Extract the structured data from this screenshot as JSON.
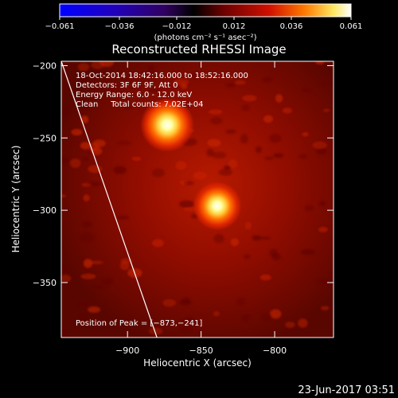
{
  "chart_data": {
    "type": "heatmap",
    "title": "Reconstructed RHESSI Image",
    "colorbar": {
      "ticks": [
        -0.061,
        -0.036,
        -0.012,
        0.012,
        0.036,
        0.061
      ],
      "tick_labels": [
        "−0.061",
        "−0.036",
        "−0.012",
        "0.012",
        "0.036",
        "0.061"
      ],
      "unit_label": "(photons cm⁻² s⁻¹ asec⁻²)",
      "range": [
        -0.061,
        0.061
      ],
      "colors": [
        "#0000ff",
        "#3a00a0",
        "#000000",
        "#6a0000",
        "#d01000",
        "#ff7a00",
        "#ffe860",
        "#ffffff"
      ]
    },
    "xlabel": "Heliocentric X (arcsec)",
    "ylabel": "Heliocentric Y (arcsec)",
    "xlim": [
      -945,
      -760
    ],
    "ylim": [
      -388,
      -197
    ],
    "x_ticks": [
      -900,
      -850,
      -800
    ],
    "x_tick_labels": [
      "−900",
      "−850",
      "−800"
    ],
    "y_ticks": [
      -200,
      -250,
      -300,
      -350
    ],
    "y_tick_labels": [
      "−200",
      "−250",
      "−300",
      "−350"
    ],
    "sources": [
      {
        "x": -873,
        "y": -241,
        "peak": 0.061
      },
      {
        "x": -839,
        "y": -297,
        "peak": 0.055
      }
    ],
    "limb_line": [
      [
        -945,
        -197
      ],
      [
        -880,
        -388
      ]
    ],
    "annotations": [
      "18-Oct-2014 18:42:16.000 to 18:52:16.000",
      "Detectors: 3F 6F 9F, Att 0",
      "Energy Range: 6.0 - 12.0 keV",
      "Clean     Total counts: 7.02E+04"
    ],
    "peak_label": "Position of Peak = [−873,−241]",
    "grid": false
  },
  "footer": {
    "timestamp": "23-Jun-2017 03:51"
  }
}
